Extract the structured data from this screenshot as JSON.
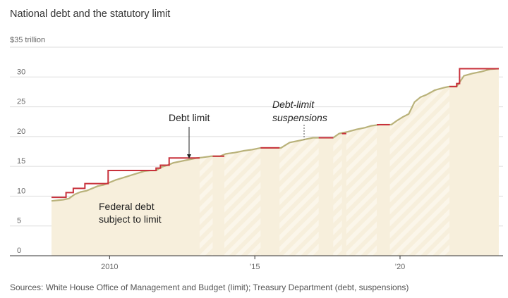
{
  "title": "National debt and the statutory limit",
  "unit_label": "$35 trillion",
  "source": "Sources: White House Office of Management and Budget (limit); Treasury Department (debt, suspensions)",
  "colors": {
    "limit_line": "#c8313b",
    "debt_line": "#b9b27a",
    "debt_fill": "#f7efdc",
    "stripe": "#fbf6ea",
    "grid": "#dddddd",
    "axis": "#333333"
  },
  "chart_data": {
    "type": "line",
    "title": "National debt and the statutory limit",
    "ylabel": "$ trillion",
    "xlim": [
      2008.0,
      2023.45
    ],
    "ylim": [
      0,
      35
    ],
    "y_ticks": [
      {
        "value": 0,
        "label": "0"
      },
      {
        "value": 5,
        "label": "5"
      },
      {
        "value": 10,
        "label": "10"
      },
      {
        "value": 15,
        "label": "15"
      },
      {
        "value": 20,
        "label": "20"
      },
      {
        "value": 25,
        "label": "25"
      },
      {
        "value": 30,
        "label": "30"
      }
    ],
    "top_tick": {
      "value": 35,
      "label": "$35 trillion"
    },
    "x_ticks": [
      {
        "value": 2010,
        "label": "2010"
      },
      {
        "value": 2015,
        "label": "’15"
      },
      {
        "value": 2020,
        "label": "’20"
      }
    ],
    "annotations": {
      "debt_limit": "Debt limit",
      "suspensions": [
        "Debt-limit",
        "suspensions"
      ],
      "federal_debt": [
        "Federal debt",
        "subject to limit"
      ]
    },
    "series": [
      {
        "name": "Debt limit",
        "segments": [
          {
            "points": [
              [
                2008.0,
                9.8
              ],
              [
                2008.5,
                9.8
              ],
              [
                2008.5,
                10.6
              ],
              [
                2008.75,
                10.6
              ],
              [
                2008.75,
                11.3
              ],
              [
                2009.15,
                11.3
              ],
              [
                2009.15,
                12.1
              ],
              [
                2009.95,
                12.1
              ],
              [
                2009.95,
                14.3
              ],
              [
                2011.6,
                14.3
              ],
              [
                2011.6,
                14.7
              ],
              [
                2011.75,
                14.7
              ],
              [
                2011.75,
                15.2
              ],
              [
                2012.05,
                15.2
              ],
              [
                2012.05,
                16.4
              ],
              [
                2013.1,
                16.4
              ]
            ]
          },
          {
            "points": [
              [
                2013.55,
                16.7
              ],
              [
                2013.95,
                16.7
              ]
            ]
          },
          {
            "points": [
              [
                2015.2,
                18.1
              ],
              [
                2015.85,
                18.1
              ]
            ]
          },
          {
            "points": [
              [
                2017.2,
                19.8
              ],
              [
                2017.7,
                19.8
              ]
            ]
          },
          {
            "points": [
              [
                2018.0,
                20.5
              ],
              [
                2018.15,
                20.5
              ]
            ]
          },
          {
            "points": [
              [
                2019.2,
                22.0
              ],
              [
                2019.65,
                22.0
              ]
            ]
          },
          {
            "points": [
              [
                2021.7,
                28.4
              ],
              [
                2021.95,
                28.4
              ],
              [
                2021.95,
                28.9
              ],
              [
                2022.05,
                28.9
              ],
              [
                2022.05,
                31.4
              ],
              [
                2023.4,
                31.4
              ]
            ]
          }
        ]
      },
      {
        "name": "Federal debt subject to limit",
        "points": [
          [
            2008.0,
            9.2
          ],
          [
            2008.2,
            9.3
          ],
          [
            2008.4,
            9.4
          ],
          [
            2008.6,
            9.6
          ],
          [
            2008.8,
            10.3
          ],
          [
            2009.0,
            10.7
          ],
          [
            2009.2,
            10.9
          ],
          [
            2009.4,
            11.3
          ],
          [
            2009.6,
            11.7
          ],
          [
            2009.8,
            11.9
          ],
          [
            2010.0,
            12.3
          ],
          [
            2010.2,
            12.7
          ],
          [
            2010.4,
            13.0
          ],
          [
            2010.6,
            13.3
          ],
          [
            2010.8,
            13.6
          ],
          [
            2011.0,
            13.9
          ],
          [
            2011.2,
            14.2
          ],
          [
            2011.4,
            14.3
          ],
          [
            2011.6,
            14.3
          ],
          [
            2011.8,
            14.9
          ],
          [
            2012.0,
            15.2
          ],
          [
            2012.2,
            15.6
          ],
          [
            2012.4,
            15.8
          ],
          [
            2012.6,
            16.0
          ],
          [
            2012.8,
            16.2
          ],
          [
            2013.0,
            16.4
          ],
          [
            2013.2,
            16.5
          ],
          [
            2013.5,
            16.7
          ],
          [
            2013.8,
            16.7
          ],
          [
            2014.0,
            17.1
          ],
          [
            2014.3,
            17.3
          ],
          [
            2014.6,
            17.6
          ],
          [
            2014.9,
            17.8
          ],
          [
            2015.2,
            18.1
          ],
          [
            2015.9,
            18.1
          ],
          [
            2016.2,
            19.0
          ],
          [
            2016.5,
            19.3
          ],
          [
            2016.8,
            19.6
          ],
          [
            2017.0,
            19.8
          ],
          [
            2017.7,
            19.8
          ],
          [
            2017.9,
            20.5
          ],
          [
            2018.2,
            20.8
          ],
          [
            2018.5,
            21.2
          ],
          [
            2018.8,
            21.5
          ],
          [
            2019.0,
            21.8
          ],
          [
            2019.3,
            22.0
          ],
          [
            2019.7,
            22.0
          ],
          [
            2019.9,
            22.7
          ],
          [
            2020.1,
            23.3
          ],
          [
            2020.3,
            23.8
          ],
          [
            2020.5,
            25.8
          ],
          [
            2020.7,
            26.6
          ],
          [
            2020.9,
            27.0
          ],
          [
            2021.2,
            27.8
          ],
          [
            2021.5,
            28.2
          ],
          [
            2021.7,
            28.4
          ],
          [
            2021.95,
            28.4
          ],
          [
            2022.2,
            30.2
          ],
          [
            2022.5,
            30.6
          ],
          [
            2022.8,
            30.9
          ],
          [
            2023.1,
            31.3
          ],
          [
            2023.4,
            31.4
          ]
        ]
      }
    ],
    "suspension_periods": [
      [
        2013.1,
        2013.55
      ],
      [
        2013.95,
        2015.2
      ],
      [
        2015.85,
        2017.2
      ],
      [
        2017.7,
        2018.0
      ],
      [
        2018.15,
        2019.2
      ],
      [
        2019.65,
        2021.7
      ]
    ]
  }
}
